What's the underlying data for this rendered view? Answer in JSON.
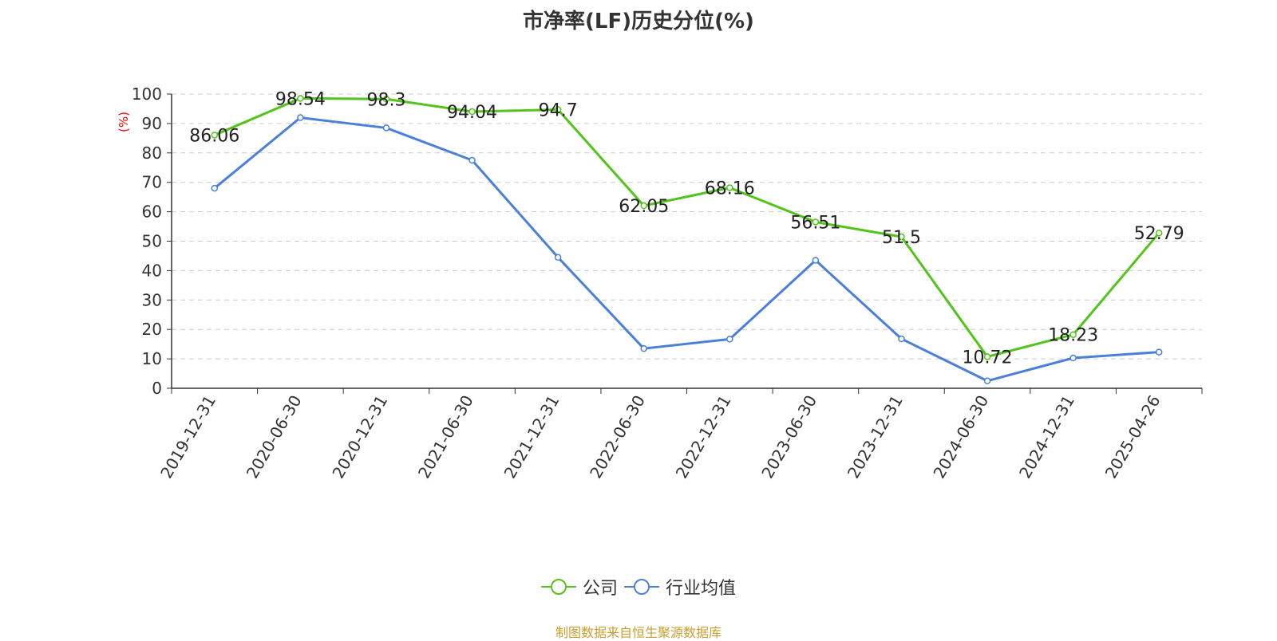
{
  "source_text": "制图数据来自恒生聚源数据库",
  "colors": {
    "company": "#52c41a",
    "industry": "#4a80d9",
    "axis": "#333333",
    "grid": "#cccccc",
    "ylabel": "#ff0000",
    "source": "#c8a030"
  },
  "chart_data": {
    "type": "line",
    "title": "市净率(LF)历史分位(%)",
    "xlabel": "",
    "ylabel": "(%)",
    "ylim": [
      0,
      100
    ],
    "yticks": [
      0,
      10,
      20,
      30,
      40,
      50,
      60,
      70,
      80,
      90,
      100
    ],
    "grid": true,
    "legend_position": "bottom",
    "categories": [
      "2019-12-31",
      "2020-06-30",
      "2020-12-31",
      "2021-06-30",
      "2021-12-31",
      "2022-06-30",
      "2022-12-31",
      "2023-06-30",
      "2023-12-31",
      "2024-06-30",
      "2024-12-31",
      "2025-04-26"
    ],
    "series": [
      {
        "name": "公司",
        "values": [
          86.06,
          98.54,
          98.3,
          94.04,
          94.7,
          62.05,
          68.16,
          56.51,
          51.5,
          10.72,
          18.23,
          52.79
        ],
        "labels": [
          "86.06",
          "98.54",
          "98.3",
          "94.04",
          "94.7",
          "62.05",
          "68.16",
          "56.51",
          "51.5",
          "10.72",
          "18.23",
          "52.79"
        ]
      },
      {
        "name": "行业均值",
        "values": [
          68,
          92,
          88.5,
          77.5,
          44.5,
          13.5,
          16.7,
          43.5,
          16.8,
          2.5,
          10.3,
          12.3
        ]
      }
    ]
  }
}
